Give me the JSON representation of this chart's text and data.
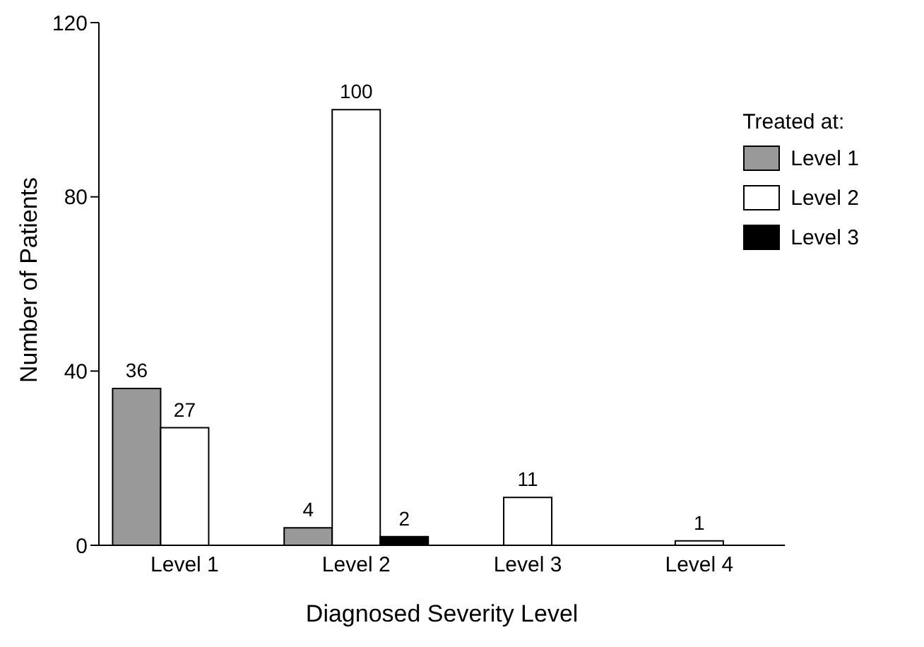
{
  "chart_data": {
    "type": "bar",
    "xlabel": "Diagnosed Severity Level",
    "ylabel": "Number of Patients",
    "legend_title": "Treated at:",
    "categories": [
      "Level 1",
      "Level 2",
      "Level 3",
      "Level 4"
    ],
    "series": [
      {
        "name": "Level 1",
        "color": "#999999",
        "values": [
          36,
          4,
          null,
          null
        ]
      },
      {
        "name": "Level 2",
        "color": "#ffffff",
        "values": [
          27,
          100,
          11,
          1
        ]
      },
      {
        "name": "Level 3",
        "color": "#000000",
        "values": [
          null,
          2,
          null,
          null
        ]
      }
    ],
    "ylim": [
      0,
      120
    ],
    "yticks": [
      0,
      40,
      80,
      120
    ],
    "grid": false,
    "legend": "top right",
    "data_labels": true
  }
}
